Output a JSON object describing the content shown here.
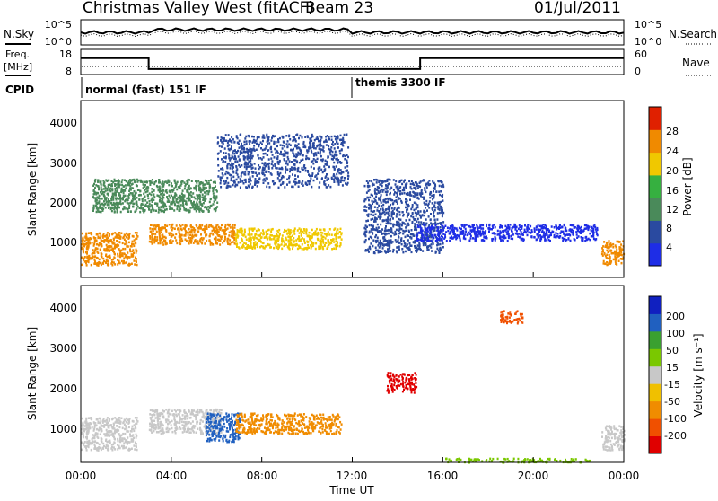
{
  "header": {
    "station": "Christmas Valley West (fitACF)",
    "beam": "Beam 23",
    "date": "01/Jul/2011"
  },
  "noise_panel": {
    "left_label": "N.Sky",
    "right_label": "N.Search",
    "left_ticks": [
      "10^5",
      "10^0"
    ],
    "right_ticks": [
      "10^5",
      "10^0"
    ]
  },
  "freq_panel": {
    "left_label_1": "Freq.",
    "left_label_2": "[MHz]",
    "right_label": "Nave",
    "left_ticks": [
      "18",
      "8"
    ],
    "right_ticks": [
      "60",
      "0"
    ]
  },
  "cpid_panel": {
    "label": "CPID",
    "mode_1": "normal (fast) 151 IF",
    "mode_2": "themis 3300 IF"
  },
  "power_panel": {
    "ylabel": "Slant Range [km]",
    "yticks": [
      "1000",
      "2000",
      "3000",
      "4000"
    ],
    "colorbar_label": "Power [dB]",
    "colorbar_ticks": [
      "4",
      "8",
      "12",
      "16",
      "20",
      "24",
      "28"
    ],
    "colors": [
      "#1e2de6",
      "#2a4aa0",
      "#4a8a5a",
      "#36b040",
      "#f0c800",
      "#f08a00",
      "#e02000"
    ]
  },
  "velocity_panel": {
    "ylabel": "Slant Range [km]",
    "yticks": [
      "1000",
      "2000",
      "3000",
      "4000"
    ],
    "colorbar_label": "Velocity [m s⁻¹]",
    "colorbar_ticks": [
      "-200",
      "-100",
      "-50",
      "-15",
      "15",
      "50",
      "100",
      "200"
    ],
    "colors": [
      "#e00000",
      "#f05000",
      "#f08c00",
      "#f0c000",
      "#c8c8c8",
      "#7ac800",
      "#3aa030",
      "#2060c0",
      "#1020c0"
    ]
  },
  "xaxis": {
    "label": "Time UT",
    "ticks": [
      "00:00",
      "04:00",
      "08:00",
      "12:00",
      "16:00",
      "20:00",
      "00:00"
    ]
  },
  "chart_data": {
    "type": "heatmap",
    "title": "Christmas Valley West (fitACF) Beam 23 01/Jul/2011",
    "xlabel": "Time UT",
    "ylabel": "Slant Range [km]",
    "xlim": [
      0,
      24
    ],
    "ylim": [
      180,
      4500
    ],
    "frequency_segments": [
      {
        "start_h": 0,
        "end_h": 3,
        "freq_mhz": 14.5
      },
      {
        "start_h": 3,
        "end_h": 15,
        "freq_mhz": 10.2
      },
      {
        "start_h": 15,
        "end_h": 24,
        "freq_mhz": 14.5
      }
    ],
    "cpid_segments": [
      {
        "start_h": 0,
        "end_h": 12,
        "mode": "normal (fast) 151 IF"
      },
      {
        "start_h": 12,
        "end_h": 24,
        "mode": "themis 3300 IF"
      }
    ],
    "power_regions": [
      {
        "t0": 0.0,
        "t1": 2.5,
        "r0": 500,
        "r1": 1300,
        "value_db": 24
      },
      {
        "t0": 3.0,
        "t1": 6.8,
        "r0": 1000,
        "r1": 1500,
        "value_db": 22
      },
      {
        "t0": 6.8,
        "t1": 11.5,
        "r0": 900,
        "r1": 1400,
        "value_db": 18
      },
      {
        "t0": 0.5,
        "t1": 6.0,
        "r0": 1800,
        "r1": 2600,
        "value_db": 10
      },
      {
        "t0": 6.0,
        "t1": 11.8,
        "r0": 2400,
        "r1": 3700,
        "value_db": 7
      },
      {
        "t0": 12.5,
        "t1": 16.0,
        "r0": 800,
        "r1": 2600,
        "value_db": 6
      },
      {
        "t0": 14.8,
        "t1": 22.8,
        "r0": 1100,
        "r1": 1500,
        "value_db": 5
      },
      {
        "t0": 23.0,
        "t1": 24.0,
        "r0": 500,
        "r1": 1100,
        "value_db": 22
      }
    ],
    "velocity_regions": [
      {
        "t0": 0.0,
        "t1": 2.5,
        "r0": 500,
        "r1": 1300,
        "value_ms": 0
      },
      {
        "t0": 3.0,
        "t1": 6.2,
        "r0": 900,
        "r1": 1500,
        "value_ms": 0
      },
      {
        "t0": 5.5,
        "t1": 7.0,
        "r0": 700,
        "r1": 1400,
        "value_ms": 150
      },
      {
        "t0": 6.8,
        "t1": 11.5,
        "r0": 900,
        "r1": 1400,
        "value_ms": -60
      },
      {
        "t0": 13.5,
        "t1": 14.8,
        "r0": 1900,
        "r1": 2400,
        "value_ms": -200
      },
      {
        "t0": 18.5,
        "t1": 19.5,
        "r0": 3600,
        "r1": 3900,
        "value_ms": -150
      },
      {
        "t0": 16.0,
        "t1": 22.5,
        "r0": 200,
        "r1": 300,
        "value_ms": 40
      },
      {
        "t0": 23.0,
        "t1": 24.0,
        "r0": 500,
        "r1": 1100,
        "value_ms": 0
      }
    ]
  }
}
